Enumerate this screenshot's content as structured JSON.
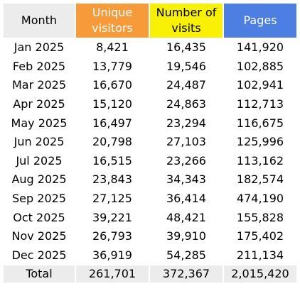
{
  "headers": {
    "month": "Month",
    "unique": "Unique visitors",
    "visits": "Number of visits",
    "pages": "Pages"
  },
  "colors": {
    "header_month_bg": "#ececec",
    "header_unique_bg": "#f79a3a",
    "header_visits_bg": "#f8f105",
    "header_pages_bg": "#4d7fe2",
    "total_row_bg": "#ececec"
  },
  "rows": [
    {
      "month": "Jan 2025",
      "unique": "8,421",
      "visits": "16,435",
      "pages": "141,920"
    },
    {
      "month": "Feb 2025",
      "unique": "13,779",
      "visits": "19,546",
      "pages": "102,885"
    },
    {
      "month": "Mar 2025",
      "unique": "16,670",
      "visits": "24,487",
      "pages": "102,941"
    },
    {
      "month": "Apr 2025",
      "unique": "15,120",
      "visits": "24,863",
      "pages": "112,713"
    },
    {
      "month": "May 2025",
      "unique": "16,497",
      "visits": "23,294",
      "pages": "116,675"
    },
    {
      "month": "Jun 2025",
      "unique": "20,798",
      "visits": "27,103",
      "pages": "125,996"
    },
    {
      "month": "Jul 2025",
      "unique": "16,515",
      "visits": "23,266",
      "pages": "113,162"
    },
    {
      "month": "Aug 2025",
      "unique": "23,843",
      "visits": "34,343",
      "pages": "182,574"
    },
    {
      "month": "Sep 2025",
      "unique": "27,125",
      "visits": "36,414",
      "pages": "474,190"
    },
    {
      "month": "Oct 2025",
      "unique": "39,221",
      "visits": "48,421",
      "pages": "155,828"
    },
    {
      "month": "Nov 2025",
      "unique": "26,793",
      "visits": "39,910",
      "pages": "175,402"
    },
    {
      "month": "Dec 2025",
      "unique": "36,919",
      "visits": "54,285",
      "pages": "211,134"
    }
  ],
  "total": {
    "label": "Total",
    "unique": "261,701",
    "visits": "372,367",
    "pages": "2,015,420"
  }
}
